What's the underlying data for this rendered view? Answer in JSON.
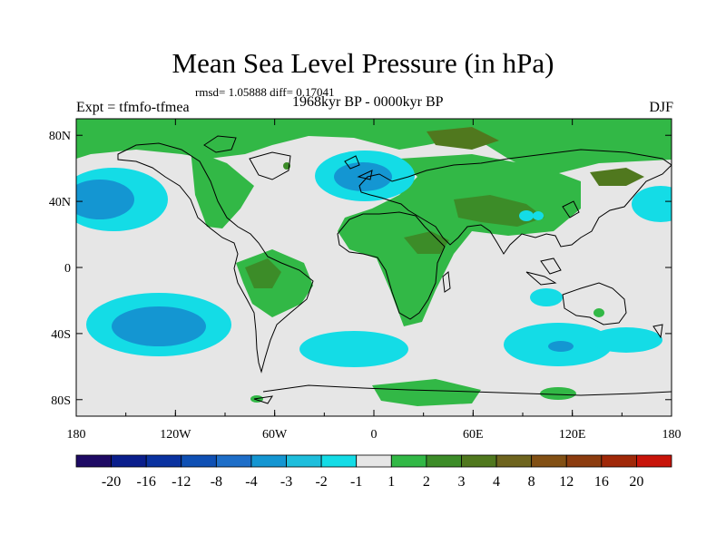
{
  "title": "Mean Sea Level Pressure (in hPa)",
  "stats": "rmsd= 1.05888 diff= 0.17041",
  "experiment": "Expt = tfmfo-tfmea",
  "period": "1968kyr BP - 0000kyr BP",
  "season": "DJF",
  "axes": {
    "x_ticks": [
      {
        "value": -180,
        "label": "180"
      },
      {
        "value": -120,
        "label": "120W"
      },
      {
        "value": -60,
        "label": "60W"
      },
      {
        "value": 0,
        "label": "0"
      },
      {
        "value": 60,
        "label": "60E"
      },
      {
        "value": 120,
        "label": "120E"
      },
      {
        "value": 180,
        "label": "180"
      }
    ],
    "y_ticks": [
      {
        "value": 80,
        "label": "80N"
      },
      {
        "value": 40,
        "label": "40N"
      },
      {
        "value": 0,
        "label": "0"
      },
      {
        "value": -40,
        "label": "40S"
      },
      {
        "value": -80,
        "label": "80S"
      }
    ],
    "lon_range": [
      -180,
      180
    ],
    "lat_range": [
      -90,
      90
    ]
  },
  "colorbar": {
    "colors": [
      "#1e0a64",
      "#0a1e8c",
      "#0a32a0",
      "#0f50b4",
      "#1e6ec8",
      "#1496d2",
      "#1ebedc",
      "#14dce6",
      "#e6e6e6",
      "#32b846",
      "#3c8c28",
      "#50781e",
      "#6e641e",
      "#825014",
      "#8c3c0f",
      "#a02808",
      "#c8140a"
    ],
    "labels": [
      "-20",
      "-16",
      "-12",
      "-8",
      "-4",
      "-3",
      "-2",
      "-1",
      "1",
      "2",
      "3",
      "4",
      "8",
      "12",
      "16",
      "20"
    ]
  },
  "chart_data": {
    "type": "heatmap",
    "title": "Mean Sea Level Pressure (in hPa)",
    "variable": "MSLP difference (hPa)",
    "anomalies": [
      {
        "lon": -145,
        "lat": 38,
        "value": -3,
        "level": "-3 to -2"
      },
      {
        "lon": -130,
        "lat": -28,
        "value": -3,
        "level": "-3 to -2"
      },
      {
        "lon": -20,
        "lat": 58,
        "value": -3,
        "level": "-3 to -2"
      },
      {
        "lon": 10,
        "lat": -45,
        "value": -2,
        "level": "-2 to -1"
      },
      {
        "lon": 110,
        "lat": -42,
        "value": -3,
        "level": "-3 to -2"
      },
      {
        "lon": 175,
        "lat": 35,
        "value": -2,
        "level": "-2 to -1"
      },
      {
        "lon": 100,
        "lat": -15,
        "value": -2,
        "level": "-2 to -1"
      },
      {
        "lon": 35,
        "lat": 30,
        "value": 3,
        "level": "3 to 4"
      },
      {
        "lon": -55,
        "lat": -10,
        "value": 3,
        "level": "3 to 4"
      },
      {
        "lon": 50,
        "lat": 78,
        "value": 3,
        "level": "3 to 4"
      },
      {
        "lon": 20,
        "lat": 15,
        "value": 2,
        "level": "2 to 3"
      }
    ],
    "legend_labels": [
      "-20",
      "-16",
      "-12",
      "-8",
      "-4",
      "-3",
      "-2",
      "-1",
      "1",
      "2",
      "3",
      "4",
      "8",
      "12",
      "16",
      "20"
    ]
  }
}
